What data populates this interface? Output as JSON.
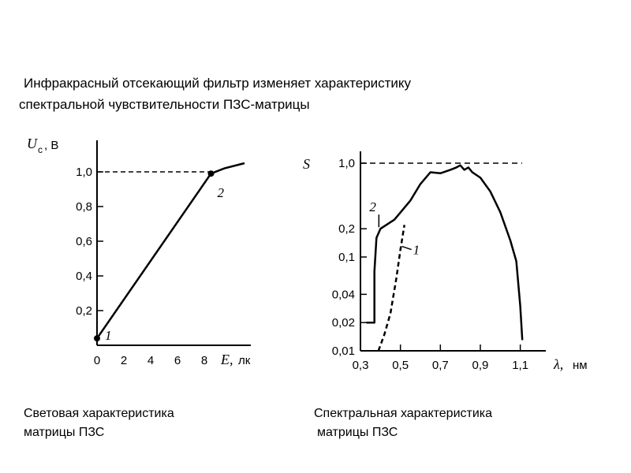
{
  "heading": {
    "line1": "Инфракрасный отсекающий фильтр изменяет характеристику",
    "line2": "спектральной чувствительности ПЗС-матрицы"
  },
  "captions": {
    "left": [
      "Световая характеристика",
      "матрицы ПЗС"
    ],
    "right": [
      "Спектральная характеристика",
      "матрицы ПЗС"
    ]
  },
  "chart_data": [
    {
      "type": "line",
      "ylabel": "U",
      "ylabel_sub": "c",
      "ylabel_unit": ", В",
      "xlabel": "E,",
      "xlabel_unit": "лк",
      "xlim": [
        0,
        11.5
      ],
      "ylim": [
        0,
        1.1
      ],
      "x_ticks": [
        "0",
        "2",
        "4",
        "6",
        "8"
      ],
      "y_ticks": [
        "0,2",
        "0,4",
        "0,6",
        "0,8",
        "1,0"
      ],
      "series": [
        {
          "x": [
            0,
            8.5,
            9.5,
            11
          ],
          "y": [
            0.04,
            0.99,
            1.02,
            1.05
          ]
        }
      ],
      "reference_line": {
        "y": 1.0,
        "style": "dashed"
      },
      "points": [
        {
          "label": "1",
          "x": 0,
          "y": 0.04
        },
        {
          "label": "2",
          "x": 8.5,
          "y": 0.99
        }
      ]
    },
    {
      "type": "line",
      "ylabel": "S",
      "xlabel": "λ,",
      "xlabel_unit": "нм",
      "xlim": [
        0.3,
        1.2
      ],
      "ylim": [
        0.01,
        1.0
      ],
      "x_ticks": [
        "0,3",
        "0,5",
        "0,7",
        "0,9",
        "1,1"
      ],
      "y_ticks": [
        "0,01",
        "0,02",
        "0,04",
        "0,1",
        "0,2",
        "1,0"
      ],
      "series": [
        {
          "name": "2",
          "style": "solid",
          "x": [
            0.33,
            0.37,
            0.37,
            0.38,
            0.4,
            0.47,
            0.55,
            0.6,
            0.65,
            0.7,
            0.75,
            0.78,
            0.8,
            0.82,
            0.84,
            0.86,
            0.9,
            0.95,
            1.0,
            1.05,
            1.08,
            1.1,
            1.11
          ],
          "y": [
            0.02,
            0.02,
            0.07,
            0.16,
            0.2,
            0.25,
            0.4,
            0.6,
            0.8,
            0.78,
            0.85,
            0.9,
            0.95,
            0.85,
            0.9,
            0.8,
            0.7,
            0.5,
            0.3,
            0.15,
            0.09,
            0.03,
            0.013
          ]
        },
        {
          "name": "1",
          "style": "dashed",
          "x": [
            0.39,
            0.42,
            0.45,
            0.48,
            0.5,
            0.52
          ],
          "y": [
            0.01,
            0.015,
            0.025,
            0.06,
            0.12,
            0.22
          ]
        }
      ],
      "reference_line": {
        "y": 1.0,
        "style": "dashed"
      }
    }
  ]
}
